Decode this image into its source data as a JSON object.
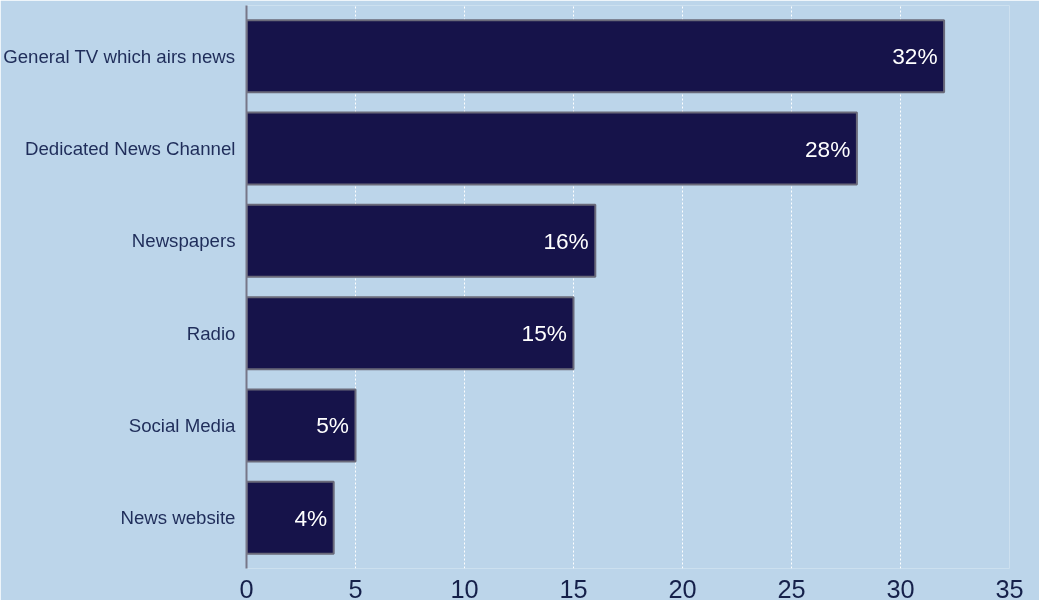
{
  "chart_data": {
    "type": "bar",
    "orientation": "horizontal",
    "categories": [
      "General TV which airs news",
      "Dedicated News Channel",
      "Newspapers",
      "Radio",
      "Social Media",
      "News website"
    ],
    "values": [
      32,
      28,
      16,
      15,
      5,
      4
    ],
    "value_labels": [
      "32%",
      "28%",
      "16%",
      "15%",
      "5%",
      "4%"
    ],
    "color": "#16134a",
    "xlim": [
      0,
      35
    ],
    "xticks": [
      0,
      5,
      10,
      15,
      20,
      25,
      30,
      35
    ],
    "grid": "x"
  }
}
